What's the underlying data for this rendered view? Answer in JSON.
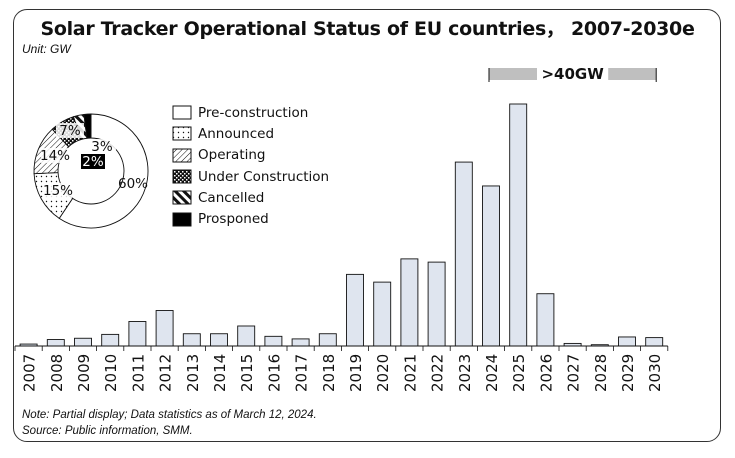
{
  "chart_data": {
    "type": "bar",
    "title": "Solar Tracker Operational Status of EU countries，  2007-2030e",
    "unit_label": "Unit:  GW",
    "categories": [
      "2007",
      "2008",
      "2009",
      "2010",
      "2011",
      "2012",
      "2013",
      "2014",
      "2015",
      "2016",
      "2017",
      "2018",
      "2019",
      "2020",
      "2021",
      "2022",
      "2023",
      "2024",
      "2025",
      "2026",
      "2027",
      "2028",
      "2029",
      "2030"
    ],
    "values": [
      0.3,
      1.0,
      1.2,
      1.8,
      3.8,
      5.5,
      1.9,
      1.9,
      3.1,
      1.5,
      1.1,
      1.9,
      11.1,
      9.9,
      13.5,
      13.0,
      28.5,
      24.8,
      37.5,
      8.1,
      0.4,
      0.2,
      1.4,
      1.3
    ],
    "ylim": [
      0,
      37.5
    ],
    "annotation": ">40GW",
    "annotation_span": [
      "2024",
      "2030"
    ],
    "bar_color": "#dfe5ef",
    "notes": [
      "Note: Partial display; Data statistics as of March 12, 2024.",
      "Source: Public information, SMM."
    ],
    "pie": {
      "type": "donut",
      "slices": [
        {
          "name": "Pre-construction",
          "value": 60,
          "label": "60%",
          "pattern": "white"
        },
        {
          "name": "Announced",
          "value": 15,
          "label": "15%",
          "pattern": "dots"
        },
        {
          "name": "Operating",
          "value": 14,
          "label": "14%",
          "pattern": "hatch"
        },
        {
          "name": "Under Construction",
          "value": 7,
          "label": "7%",
          "pattern": "check"
        },
        {
          "name": "Cancelled",
          "value": 3,
          "label": "3%",
          "pattern": "diag"
        },
        {
          "name": "Prosponed",
          "value": 2,
          "label": "2%",
          "pattern": "black"
        }
      ]
    },
    "legend": [
      {
        "label": "Pre-construction",
        "pattern": "white"
      },
      {
        "label": "Announced",
        "pattern": "dots"
      },
      {
        "label": "Operating",
        "pattern": "hatch"
      },
      {
        "label": "Under Construction",
        "pattern": "check"
      },
      {
        "label": "Cancelled",
        "pattern": "diag"
      },
      {
        "label": "Prosponed",
        "pattern": "black"
      }
    ]
  }
}
